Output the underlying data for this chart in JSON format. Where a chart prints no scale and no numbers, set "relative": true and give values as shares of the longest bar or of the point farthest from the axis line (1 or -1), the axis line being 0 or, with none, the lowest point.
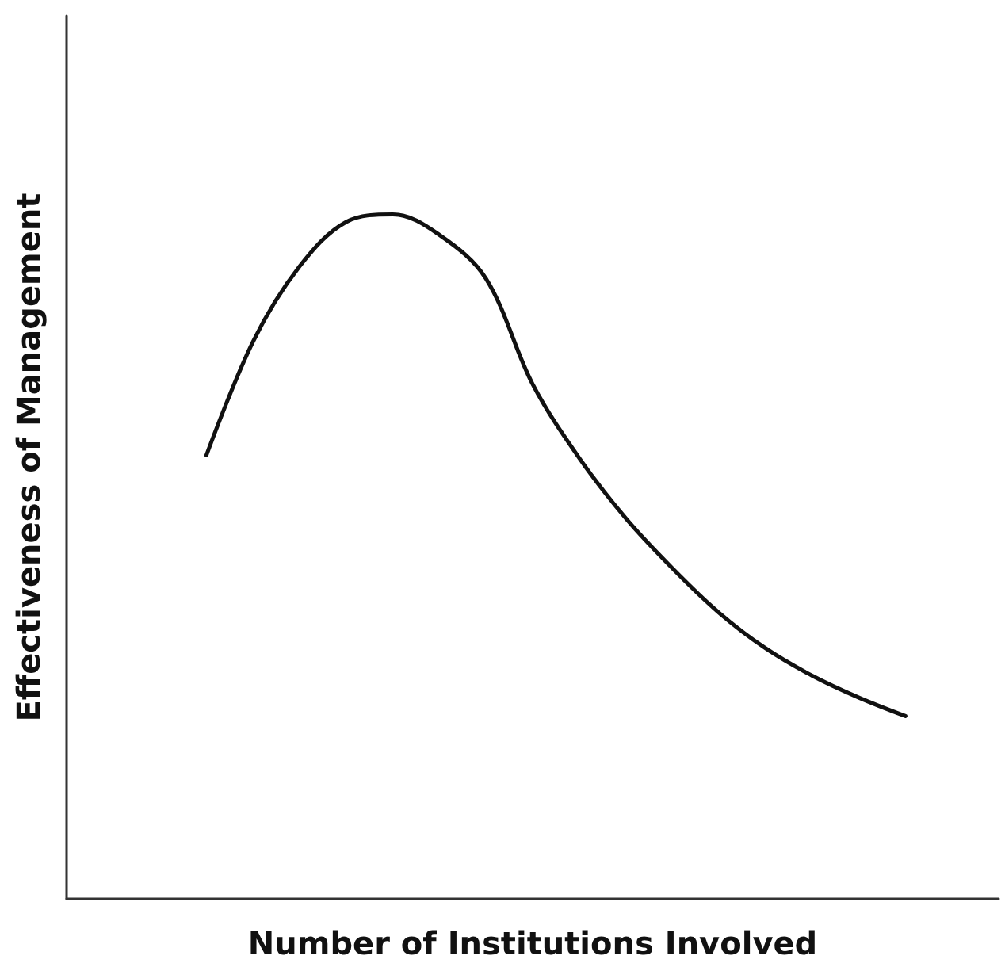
{
  "chart_data": {
    "type": "line",
    "relative": true,
    "xlabel": "Number of Institutions Involved",
    "ylabel": "Effectiveness of Management",
    "categories": [
      null,
      null,
      null,
      null,
      null,
      null,
      null,
      null,
      null,
      null,
      null,
      null,
      null,
      null,
      null,
      null,
      null,
      null,
      null,
      null,
      null
    ],
    "series": [
      {
        "color": "#111111",
        "values": [
          null,
          null,
          null,
          0.648,
          0.814,
          0.924,
          0.989,
          1,
          0.97,
          0.906,
          0.752,
          0.644,
          0.556,
          0.483,
          0.418,
          0.366,
          0.326,
          0.294,
          0.267,
          null,
          null
        ]
      }
    ],
    "marker": "none",
    "line_style": "solid"
  }
}
